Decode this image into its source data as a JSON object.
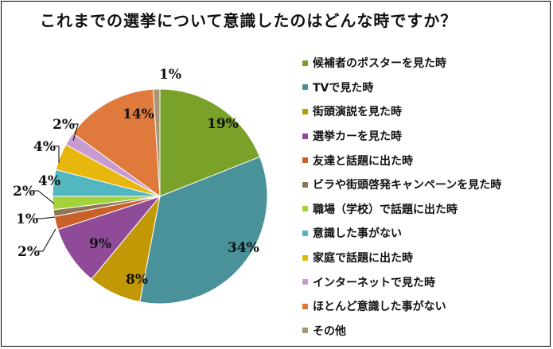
{
  "chart_data": {
    "type": "pie",
    "title": "これまでの選挙について意識したのはどんな時ですか？",
    "value_suffix": "%",
    "slices": [
      {
        "label": "候補者のポスターを見た時",
        "value": 19,
        "color": "#7aa229"
      },
      {
        "label": "TVで見た時",
        "value": 34,
        "color": "#4a9299"
      },
      {
        "label": "街頭演説を見た時",
        "value": 8,
        "color": "#c29806"
      },
      {
        "label": "選挙カーを見た時",
        "value": 9,
        "color": "#8f4a98"
      },
      {
        "label": "友達と話題に出た時",
        "value": 2,
        "color": "#c9602a"
      },
      {
        "label": "ビラや街頭啓発キャンペーンを見た時",
        "value": 1,
        "color": "#8c7757"
      },
      {
        "label": "職場（学校）で話題に出た時",
        "value": 2,
        "color": "#a4d23a"
      },
      {
        "label": "意識した事がない",
        "value": 4,
        "color": "#53b7c2"
      },
      {
        "label": "家庭で話題に出た時",
        "value": 4,
        "color": "#e8b70d"
      },
      {
        "label": "インターネットで見た時",
        "value": 2,
        "color": "#c79ad0"
      },
      {
        "label": "ほとんど意識した事がない",
        "value": 14,
        "color": "#e07a3c"
      },
      {
        "label": "その他",
        "value": 1,
        "color": "#a89677"
      }
    ],
    "legend_position": "right"
  }
}
